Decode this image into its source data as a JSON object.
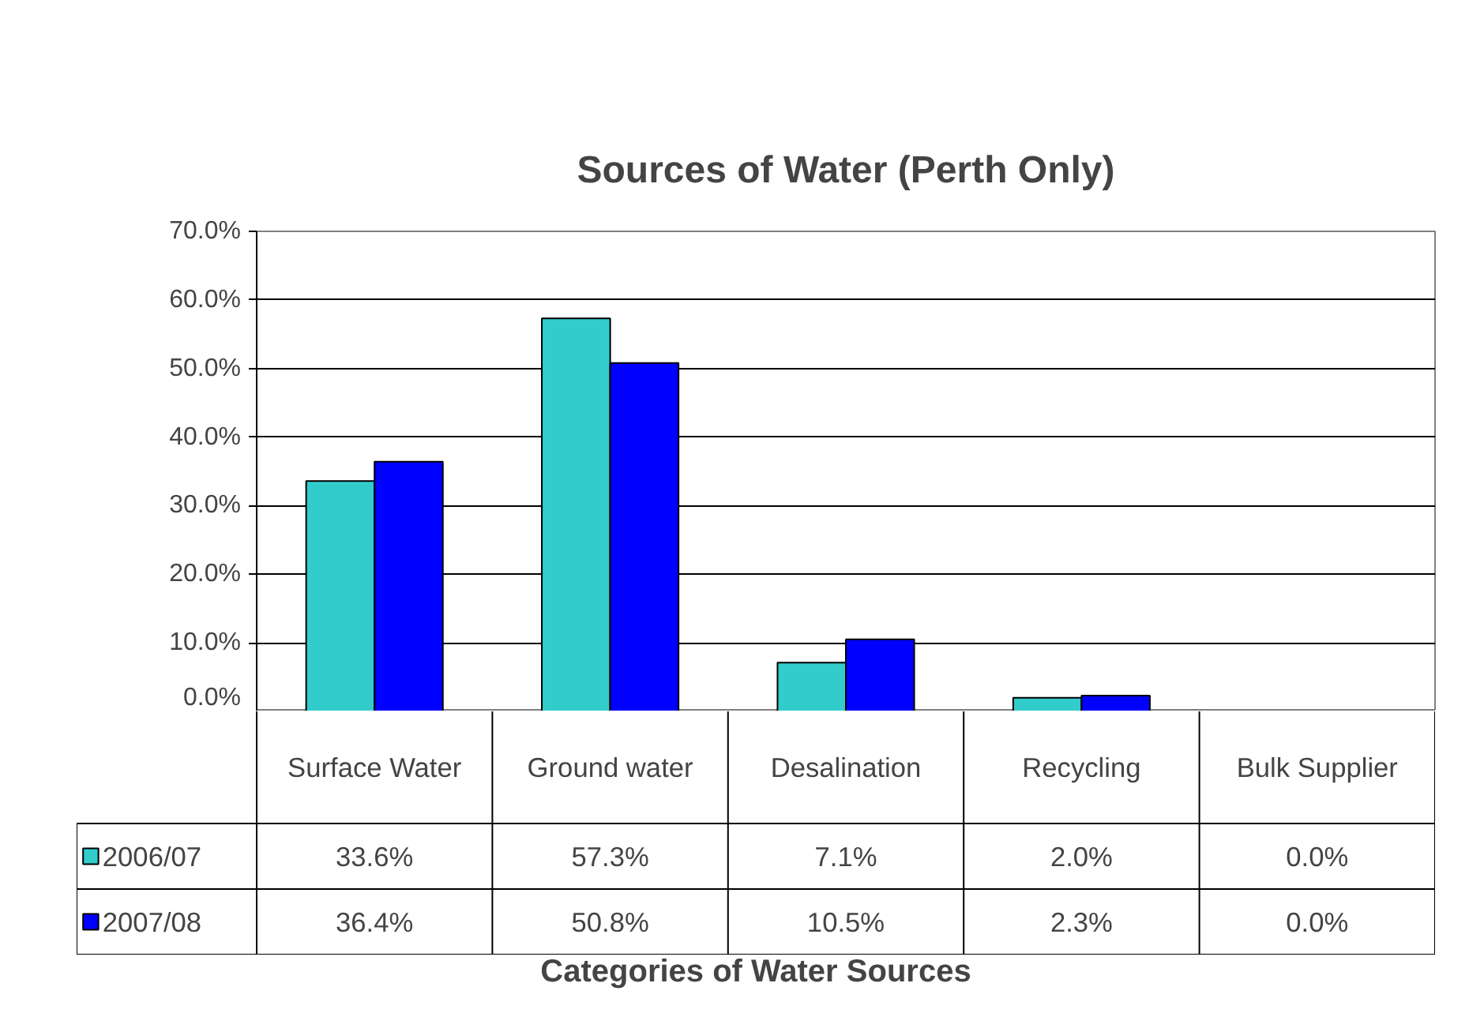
{
  "chart_data": {
    "type": "bar",
    "title": "Sources of Water (Perth Only)",
    "annotations": [
      "Categories of Water Sources"
    ],
    "categories": [
      "Surface Water",
      "Ground water",
      "Desalination",
      "Recycling",
      "Bulk Supplier"
    ],
    "series": [
      {
        "name": "2006/07",
        "color": "#33cccc",
        "values": [
          33.6,
          57.3,
          7.1,
          2.0,
          0.0
        ],
        "value_labels": [
          "33.6%",
          "57.3%",
          "7.1%",
          "2.0%",
          "0.0%"
        ]
      },
      {
        "name": "2007/08",
        "color": "#0000ff",
        "values": [
          36.4,
          50.8,
          10.5,
          2.3,
          0.0
        ],
        "value_labels": [
          "36.4%",
          "50.8%",
          "10.5%",
          "2.3%",
          "0.0%"
        ]
      }
    ],
    "ylim": [
      0,
      70
    ],
    "yticks": [
      {
        "value": 0,
        "label": "0.0%"
      },
      {
        "value": 10,
        "label": "10.0%"
      },
      {
        "value": 20,
        "label": "20.0%"
      },
      {
        "value": 30,
        "label": "30.0%"
      },
      {
        "value": 40,
        "label": "40.0%"
      },
      {
        "value": 50,
        "label": "50.0%"
      },
      {
        "value": 60,
        "label": "60.0%"
      },
      {
        "value": 70,
        "label": "70.0%"
      }
    ],
    "grid": "y",
    "legend": "bottom left"
  }
}
